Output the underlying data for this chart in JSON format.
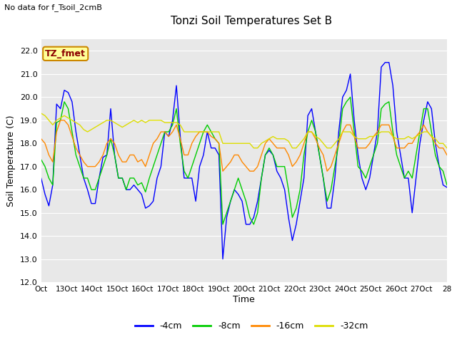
{
  "title": "Tonzi Soil Temperatures Set B",
  "top_left_text": "No data for f_Tsoil_2cmB",
  "box_label": "TZ_fmet",
  "ylabel": "Soil Temperature (C)",
  "xlabel": "Time",
  "ylim": [
    12.0,
    22.5
  ],
  "yticks": [
    12.0,
    13.0,
    14.0,
    15.0,
    16.0,
    17.0,
    18.0,
    19.0,
    20.0,
    21.0,
    22.0
  ],
  "xtick_labels": [
    "Oct",
    "13Oct",
    "14Oct",
    "15Oct",
    "16Oct",
    "17Oct",
    "18Oct",
    "19Oct",
    "20Oct",
    "21Oct",
    "22Oct",
    "23Oct",
    "24Oct",
    "25Oct",
    "26Oct",
    "27Oct",
    "28"
  ],
  "bg_color": "#e8e8e8",
  "line_colors": {
    "-4cm": "#0000ff",
    "-8cm": "#00cc00",
    "-16cm": "#ff8800",
    "-32cm": "#dddd00"
  },
  "series_4cm": [
    16.5,
    15.8,
    15.3,
    16.2,
    19.7,
    19.5,
    20.3,
    20.2,
    19.8,
    18.5,
    17.5,
    16.5,
    16.0,
    15.4,
    15.4,
    16.5,
    17.4,
    17.5,
    19.5,
    17.5,
    16.5,
    16.5,
    16.0,
    16.0,
    16.2,
    16.0,
    15.8,
    15.2,
    15.3,
    15.5,
    16.5,
    17.0,
    18.5,
    18.3,
    19.0,
    20.5,
    18.3,
    16.5,
    16.5,
    16.5,
    15.5,
    17.0,
    17.5,
    18.5,
    17.8,
    17.8,
    17.5,
    13.0,
    14.8,
    15.5,
    16.0,
    15.8,
    15.5,
    14.5,
    14.5,
    14.8,
    15.5,
    16.5,
    17.5,
    17.7,
    17.5,
    16.8,
    16.5,
    16.0,
    14.8,
    13.8,
    14.5,
    15.5,
    16.5,
    19.2,
    19.5,
    18.5,
    17.5,
    16.5,
    15.2,
    15.2,
    16.5,
    18.5,
    20.0,
    20.3,
    21.0,
    19.0,
    17.5,
    16.5,
    16.0,
    16.5,
    17.5,
    18.5,
    21.3,
    21.5,
    21.5,
    20.5,
    18.5,
    17.5,
    16.5,
    16.5,
    15.0,
    16.5,
    18.0,
    19.0,
    19.8,
    19.5,
    18.0,
    17.0,
    16.2,
    16.1
  ],
  "series_8cm": [
    17.3,
    17.0,
    16.5,
    16.2,
    18.9,
    19.0,
    19.8,
    19.5,
    18.5,
    17.5,
    17.0,
    16.5,
    16.5,
    16.0,
    16.0,
    16.5,
    17.0,
    17.5,
    18.2,
    17.5,
    16.5,
    16.5,
    16.0,
    16.5,
    16.5,
    16.2,
    16.3,
    15.9,
    16.5,
    17.0,
    17.5,
    18.0,
    18.5,
    18.5,
    18.8,
    19.5,
    18.0,
    16.8,
    16.5,
    17.0,
    17.5,
    18.0,
    18.5,
    18.8,
    18.5,
    18.2,
    18.0,
    14.5,
    15.0,
    15.5,
    16.0,
    16.5,
    16.0,
    15.5,
    14.8,
    14.5,
    15.0,
    16.5,
    17.5,
    17.8,
    17.5,
    17.0,
    17.0,
    17.0,
    16.0,
    14.8,
    15.2,
    16.0,
    17.5,
    18.5,
    19.0,
    18.5,
    17.5,
    16.5,
    15.5,
    16.0,
    17.0,
    18.0,
    19.5,
    19.8,
    20.0,
    18.5,
    17.0,
    16.8,
    16.5,
    17.0,
    17.5,
    18.0,
    19.5,
    19.7,
    19.8,
    18.5,
    17.5,
    17.0,
    16.5,
    16.8,
    16.5,
    17.5,
    18.5,
    19.5,
    19.5,
    18.5,
    17.5,
    17.0,
    16.8,
    16.2
  ],
  "series_16cm": [
    18.2,
    18.0,
    17.5,
    17.2,
    18.5,
    19.0,
    19.0,
    18.8,
    18.3,
    17.8,
    17.5,
    17.2,
    17.0,
    17.0,
    17.0,
    17.2,
    17.5,
    18.0,
    18.2,
    18.0,
    17.5,
    17.2,
    17.2,
    17.5,
    17.5,
    17.2,
    17.3,
    17.0,
    17.5,
    18.0,
    18.2,
    18.5,
    18.5,
    18.3,
    18.5,
    18.8,
    18.2,
    17.5,
    17.5,
    18.0,
    18.3,
    18.5,
    18.5,
    18.5,
    18.3,
    18.2,
    18.0,
    16.8,
    17.0,
    17.2,
    17.5,
    17.5,
    17.2,
    17.0,
    16.8,
    16.8,
    17.0,
    17.5,
    18.0,
    18.2,
    18.0,
    17.8,
    17.8,
    17.8,
    17.5,
    17.0,
    17.2,
    17.5,
    18.0,
    18.5,
    18.5,
    18.2,
    17.8,
    17.5,
    16.8,
    17.0,
    17.5,
    18.0,
    18.5,
    18.8,
    18.8,
    18.3,
    17.8,
    17.8,
    17.8,
    18.0,
    18.3,
    18.5,
    18.8,
    18.8,
    18.8,
    18.3,
    17.8,
    17.8,
    17.8,
    18.0,
    18.0,
    18.3,
    18.5,
    18.8,
    18.5,
    18.3,
    18.0,
    17.8,
    17.8,
    17.5
  ],
  "series_32cm": [
    19.3,
    19.2,
    19.0,
    18.8,
    19.0,
    19.1,
    19.2,
    19.1,
    19.0,
    18.9,
    18.8,
    18.6,
    18.5,
    18.6,
    18.7,
    18.8,
    18.9,
    19.0,
    19.0,
    18.9,
    18.8,
    18.7,
    18.8,
    18.9,
    19.0,
    18.9,
    19.0,
    18.9,
    19.0,
    19.0,
    19.0,
    19.0,
    18.9,
    18.9,
    18.9,
    18.9,
    18.8,
    18.5,
    18.5,
    18.5,
    18.5,
    18.5,
    18.5,
    18.5,
    18.5,
    18.5,
    18.5,
    18.0,
    18.0,
    18.0,
    18.0,
    18.0,
    18.0,
    18.0,
    18.0,
    17.8,
    17.8,
    18.0,
    18.1,
    18.2,
    18.3,
    18.2,
    18.2,
    18.2,
    18.1,
    17.8,
    17.8,
    18.0,
    18.2,
    18.5,
    18.5,
    18.3,
    18.2,
    18.0,
    17.8,
    17.8,
    18.0,
    18.2,
    18.5,
    18.5,
    18.5,
    18.3,
    18.2,
    18.2,
    18.2,
    18.3,
    18.3,
    18.4,
    18.5,
    18.5,
    18.5,
    18.3,
    18.2,
    18.2,
    18.2,
    18.3,
    18.2,
    18.3,
    18.4,
    18.5,
    18.5,
    18.3,
    18.2,
    18.0,
    18.0,
    17.8
  ]
}
